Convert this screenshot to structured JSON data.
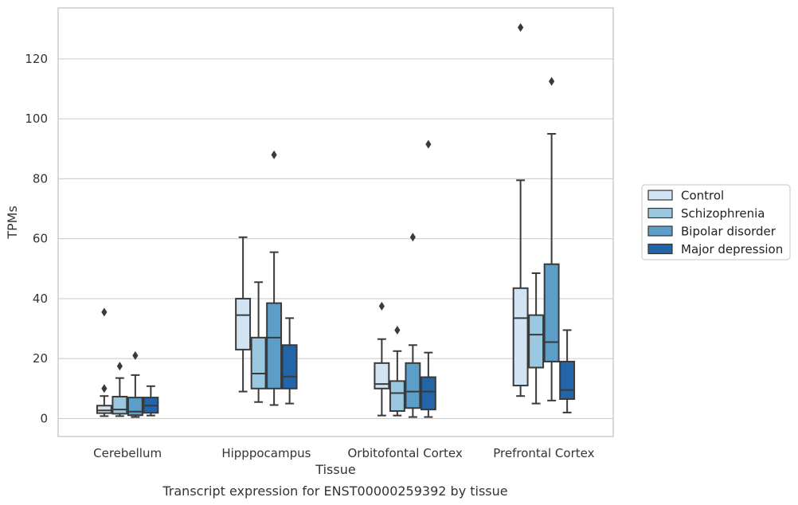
{
  "chart_data": {
    "type": "box",
    "title": "",
    "caption": "Transcript expression for ENST00000259392 by tissue",
    "xlabel": "Tissue",
    "ylabel": "TPMs",
    "ylim": [
      -6,
      137
    ],
    "yticks": [
      0,
      20,
      40,
      60,
      80,
      100,
      120
    ],
    "grid": "horizontal",
    "legend_position": "right",
    "categories": [
      "Cerebellum",
      "Hipppocampus",
      "Orbitofontal Cortex",
      "Prefrontal Cortex"
    ],
    "series": [
      {
        "name": "Control",
        "color": "#d2e3f3",
        "boxes": [
          {
            "whislo": 0.8,
            "q1": 1.8,
            "med": 2.7,
            "q3": 4.3,
            "whishi": 7.5,
            "fliers": [
              35.5,
              10.0
            ]
          },
          {
            "whislo": 9.0,
            "q1": 23.0,
            "med": 34.5,
            "q3": 40.0,
            "whishi": 60.5,
            "fliers": []
          },
          {
            "whislo": 1.0,
            "q1": 10.0,
            "med": 11.5,
            "q3": 18.5,
            "whishi": 26.5,
            "fliers": [
              37.5
            ]
          },
          {
            "whislo": 7.5,
            "q1": 11.0,
            "med": 33.5,
            "q3": 43.5,
            "whishi": 79.5,
            "fliers": [
              130.5
            ]
          }
        ]
      },
      {
        "name": "Schizophrenia",
        "color": "#9ac8e0",
        "boxes": [
          {
            "whislo": 0.8,
            "q1": 1.6,
            "med": 3.0,
            "q3": 7.3,
            "whishi": 13.5,
            "fliers": [
              17.5
            ]
          },
          {
            "whislo": 5.5,
            "q1": 10.0,
            "med": 15.0,
            "q3": 27.0,
            "whishi": 45.5,
            "fliers": []
          },
          {
            "whislo": 1.0,
            "q1": 2.5,
            "med": 8.5,
            "q3": 12.5,
            "whishi": 22.5,
            "fliers": [
              29.5
            ]
          },
          {
            "whislo": 5.0,
            "q1": 17.0,
            "med": 28.0,
            "q3": 34.5,
            "whishi": 48.5,
            "fliers": []
          }
        ]
      },
      {
        "name": "Bipolar disorder",
        "color": "#5a9ec9",
        "boxes": [
          {
            "whislo": 0.5,
            "q1": 1.1,
            "med": 2.3,
            "q3": 7.0,
            "whishi": 14.5,
            "fliers": [
              21.0
            ]
          },
          {
            "whislo": 4.5,
            "q1": 10.0,
            "med": 27.0,
            "q3": 38.5,
            "whishi": 55.5,
            "fliers": [
              88.0
            ]
          },
          {
            "whislo": 0.5,
            "q1": 3.5,
            "med": 9.0,
            "q3": 18.5,
            "whishi": 24.5,
            "fliers": [
              60.5
            ]
          },
          {
            "whislo": 6.0,
            "q1": 19.0,
            "med": 25.5,
            "q3": 51.5,
            "whishi": 95.0,
            "fliers": [
              112.5
            ]
          }
        ]
      },
      {
        "name": "Major depression",
        "color": "#2265a9",
        "boxes": [
          {
            "whislo": 1.0,
            "q1": 1.9,
            "med": 4.3,
            "q3": 7.0,
            "whishi": 10.8,
            "fliers": []
          },
          {
            "whislo": 5.0,
            "q1": 10.0,
            "med": 14.0,
            "q3": 24.5,
            "whishi": 33.5,
            "fliers": []
          },
          {
            "whislo": 0.5,
            "q1": 3.0,
            "med": 9.0,
            "q3": 13.8,
            "whishi": 22.0,
            "fliers": [
              91.5
            ]
          },
          {
            "whislo": 2.0,
            "q1": 6.5,
            "med": 9.5,
            "q3": 19.0,
            "whishi": 29.5,
            "fliers": []
          }
        ]
      }
    ]
  }
}
